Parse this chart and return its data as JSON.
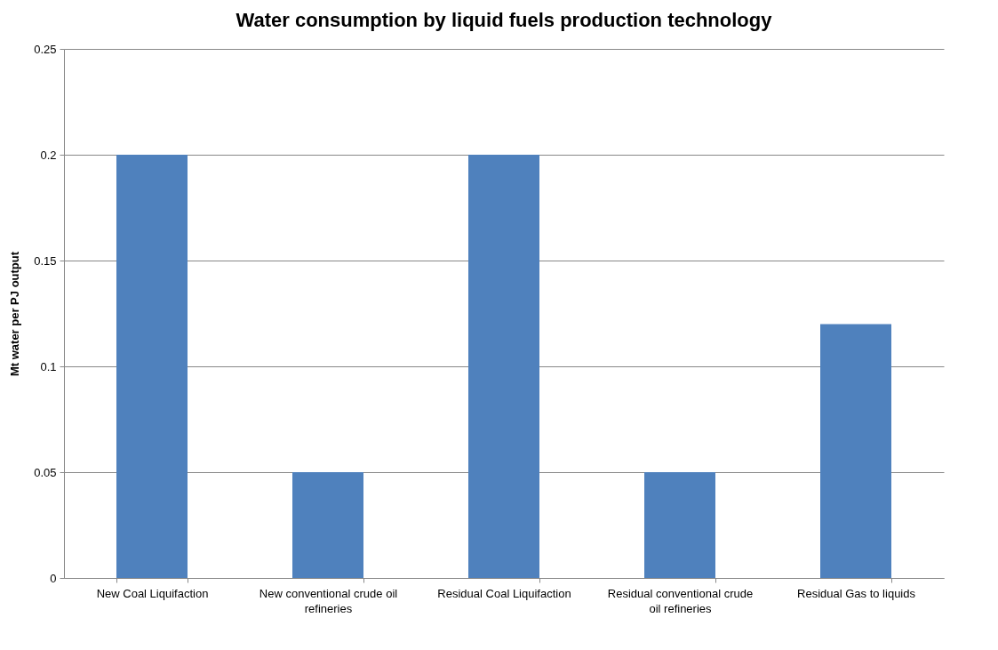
{
  "chart_data": {
    "type": "bar",
    "title": "Water consumption by liquid fuels production technology",
    "ylabel": "Mt water per PJ output",
    "categories": [
      "New Coal Liquifaction",
      "New conventional crude oil refineries",
      "Residual Coal Liquifaction",
      "Residual conventional crude oil refineries",
      "Residual Gas to liquids"
    ],
    "values": [
      0.2,
      0.05,
      0.2,
      0.05,
      0.12
    ],
    "color": "#4f81bd",
    "ylim": [
      0,
      0.25
    ],
    "yticks": [
      0,
      0.05,
      0.1,
      0.15,
      0.2,
      0.25
    ],
    "grid": "y"
  }
}
